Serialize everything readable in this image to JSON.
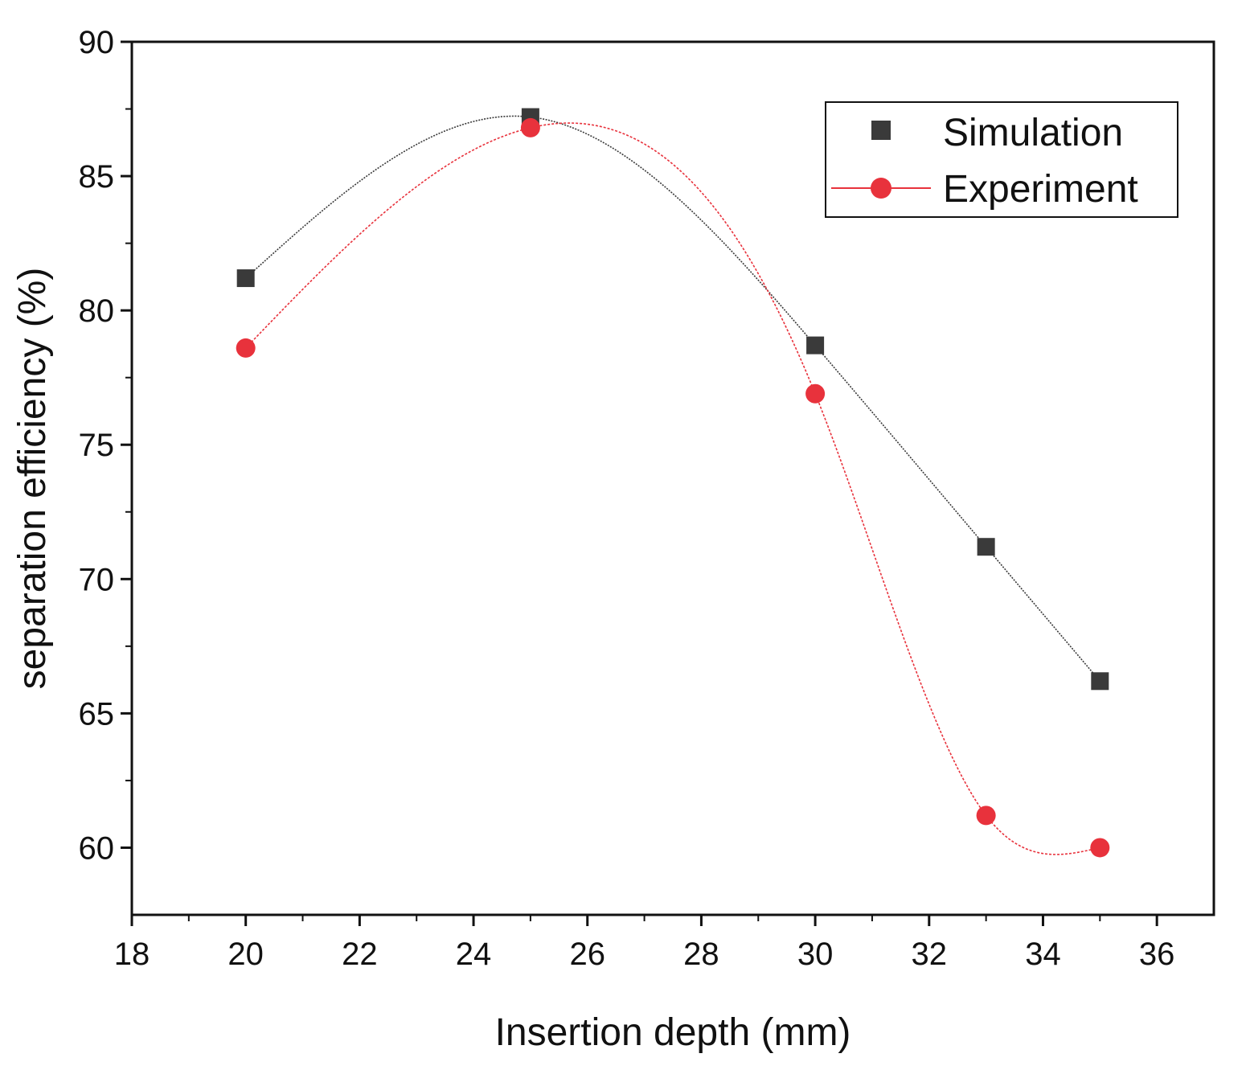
{
  "chart_data": {
    "type": "line",
    "title": "",
    "xlabel": "Insertion depth (mm)",
    "ylabel": "separation efficiency (%)",
    "xlim": [
      18,
      37
    ],
    "ylim": [
      57.5,
      90
    ],
    "xticks": [
      18,
      20,
      22,
      24,
      26,
      28,
      30,
      32,
      34,
      36
    ],
    "yticks": [
      60,
      65,
      70,
      75,
      80,
      85,
      90
    ],
    "grid": false,
    "legend_position": "top-right",
    "series": [
      {
        "name": "Simulation",
        "marker": "square",
        "line_style": "spline",
        "color": "#3a3a3a",
        "x": [
          20,
          25,
          30,
          33,
          35
        ],
        "y": [
          81.2,
          87.2,
          78.7,
          71.2,
          66.2
        ]
      },
      {
        "name": "Experiment",
        "marker": "circle",
        "line_style": "spline",
        "color": "#e8323c",
        "x": [
          20,
          25,
          30,
          33,
          35
        ],
        "y": [
          78.6,
          86.8,
          76.9,
          61.2,
          60.0
        ]
      }
    ]
  }
}
